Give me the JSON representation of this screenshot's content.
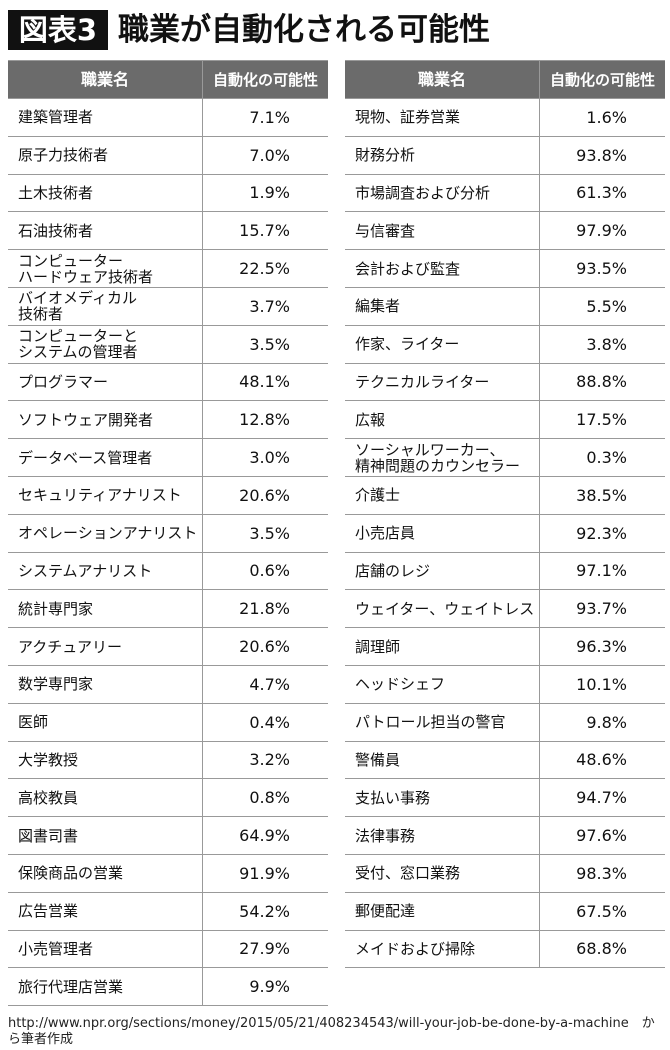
{
  "header": {
    "label": "図表3",
    "title": "職業が自動化される可能性"
  },
  "tables": [
    {
      "columns": [
        "職業名",
        "自動化の可能性"
      ],
      "rows": [
        [
          "建築管理者",
          "7.1%"
        ],
        [
          "原子力技術者",
          "7.0%"
        ],
        [
          "土木技術者",
          "1.9%"
        ],
        [
          "石油技術者",
          "15.7%"
        ],
        [
          "コンピューター\nハードウェア技術者",
          "22.5%"
        ],
        [
          "バイオメディカル\n技術者",
          "3.7%"
        ],
        [
          "コンピューターと\nシステムの管理者",
          "3.5%"
        ],
        [
          "プログラマー",
          "48.1%"
        ],
        [
          "ソフトウェア開発者",
          "12.8%"
        ],
        [
          "データベース管理者",
          "3.0%"
        ],
        [
          "セキュリティアナリスト",
          "20.6%"
        ],
        [
          "オペレーションアナリスト",
          "3.5%"
        ],
        [
          "システムアナリスト",
          "0.6%"
        ],
        [
          "統計専門家",
          "21.8%"
        ],
        [
          "アクチュアリー",
          "20.6%"
        ],
        [
          "数学専門家",
          "4.7%"
        ],
        [
          "医師",
          "0.4%"
        ],
        [
          "大学教授",
          "3.2%"
        ],
        [
          "高校教員",
          "0.8%"
        ],
        [
          "図書司書",
          "64.9%"
        ],
        [
          "保険商品の営業",
          "91.9%"
        ],
        [
          "広告営業",
          "54.2%"
        ],
        [
          "小売管理者",
          "27.9%"
        ],
        [
          "旅行代理店営業",
          "9.9%"
        ]
      ]
    },
    {
      "columns": [
        "職業名",
        "自動化の可能性"
      ],
      "rows": [
        [
          "現物、証券営業",
          "1.6%"
        ],
        [
          "財務分析",
          "93.8%"
        ],
        [
          "市場調査および分析",
          "61.3%"
        ],
        [
          "与信審査",
          "97.9%"
        ],
        [
          "会計および監査",
          "93.5%"
        ],
        [
          "編集者",
          "5.5%"
        ],
        [
          "作家、ライター",
          "3.8%"
        ],
        [
          "テクニカルライター",
          "88.8%"
        ],
        [
          "広報",
          "17.5%"
        ],
        [
          "ソーシャルワーカー、\n精神問題のカウンセラー",
          "0.3%"
        ],
        [
          "介護士",
          "38.5%"
        ],
        [
          "小売店員",
          "92.3%"
        ],
        [
          "店舗のレジ",
          "97.1%"
        ],
        [
          "ウェイター、ウェイトレス",
          "93.7%"
        ],
        [
          "調理師",
          "96.3%"
        ],
        [
          "ヘッドシェフ",
          "10.1%"
        ],
        [
          "パトロール担当の警官",
          "9.8%"
        ],
        [
          "警備員",
          "48.6%"
        ],
        [
          "支払い事務",
          "94.7%"
        ],
        [
          "法律事務",
          "97.6%"
        ],
        [
          "受付、窓口業務",
          "98.3%"
        ],
        [
          "郵便配達",
          "67.5%"
        ],
        [
          "メイドおよび掃除",
          "68.8%"
        ]
      ]
    }
  ],
  "source": "http://www.npr.org/sections/money/2015/05/21/408234543/will-your-job-be-done-by-a-machine　から筆者作成"
}
